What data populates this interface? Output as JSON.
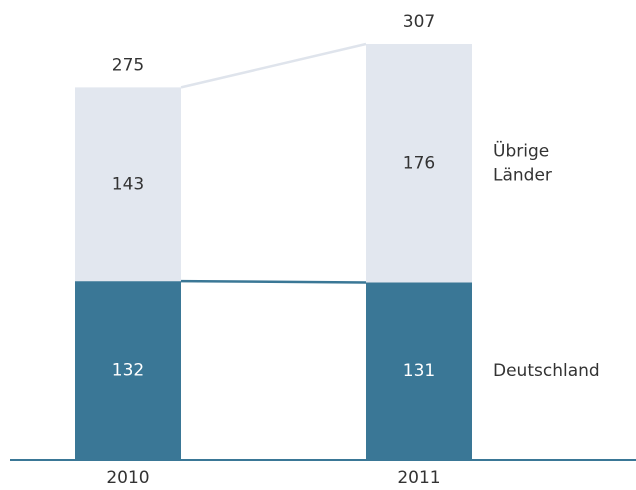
{
  "chart_data": {
    "type": "stacked_bar",
    "categories": [
      "2010",
      "2011"
    ],
    "series": [
      {
        "name": "Deutschland",
        "color": "#3a7796",
        "values": [
          132,
          131
        ]
      },
      {
        "name": "Übrige Länder",
        "color": "#e2e7ef",
        "values": [
          143,
          176
        ]
      }
    ],
    "totals": [
      275,
      307
    ]
  }
}
